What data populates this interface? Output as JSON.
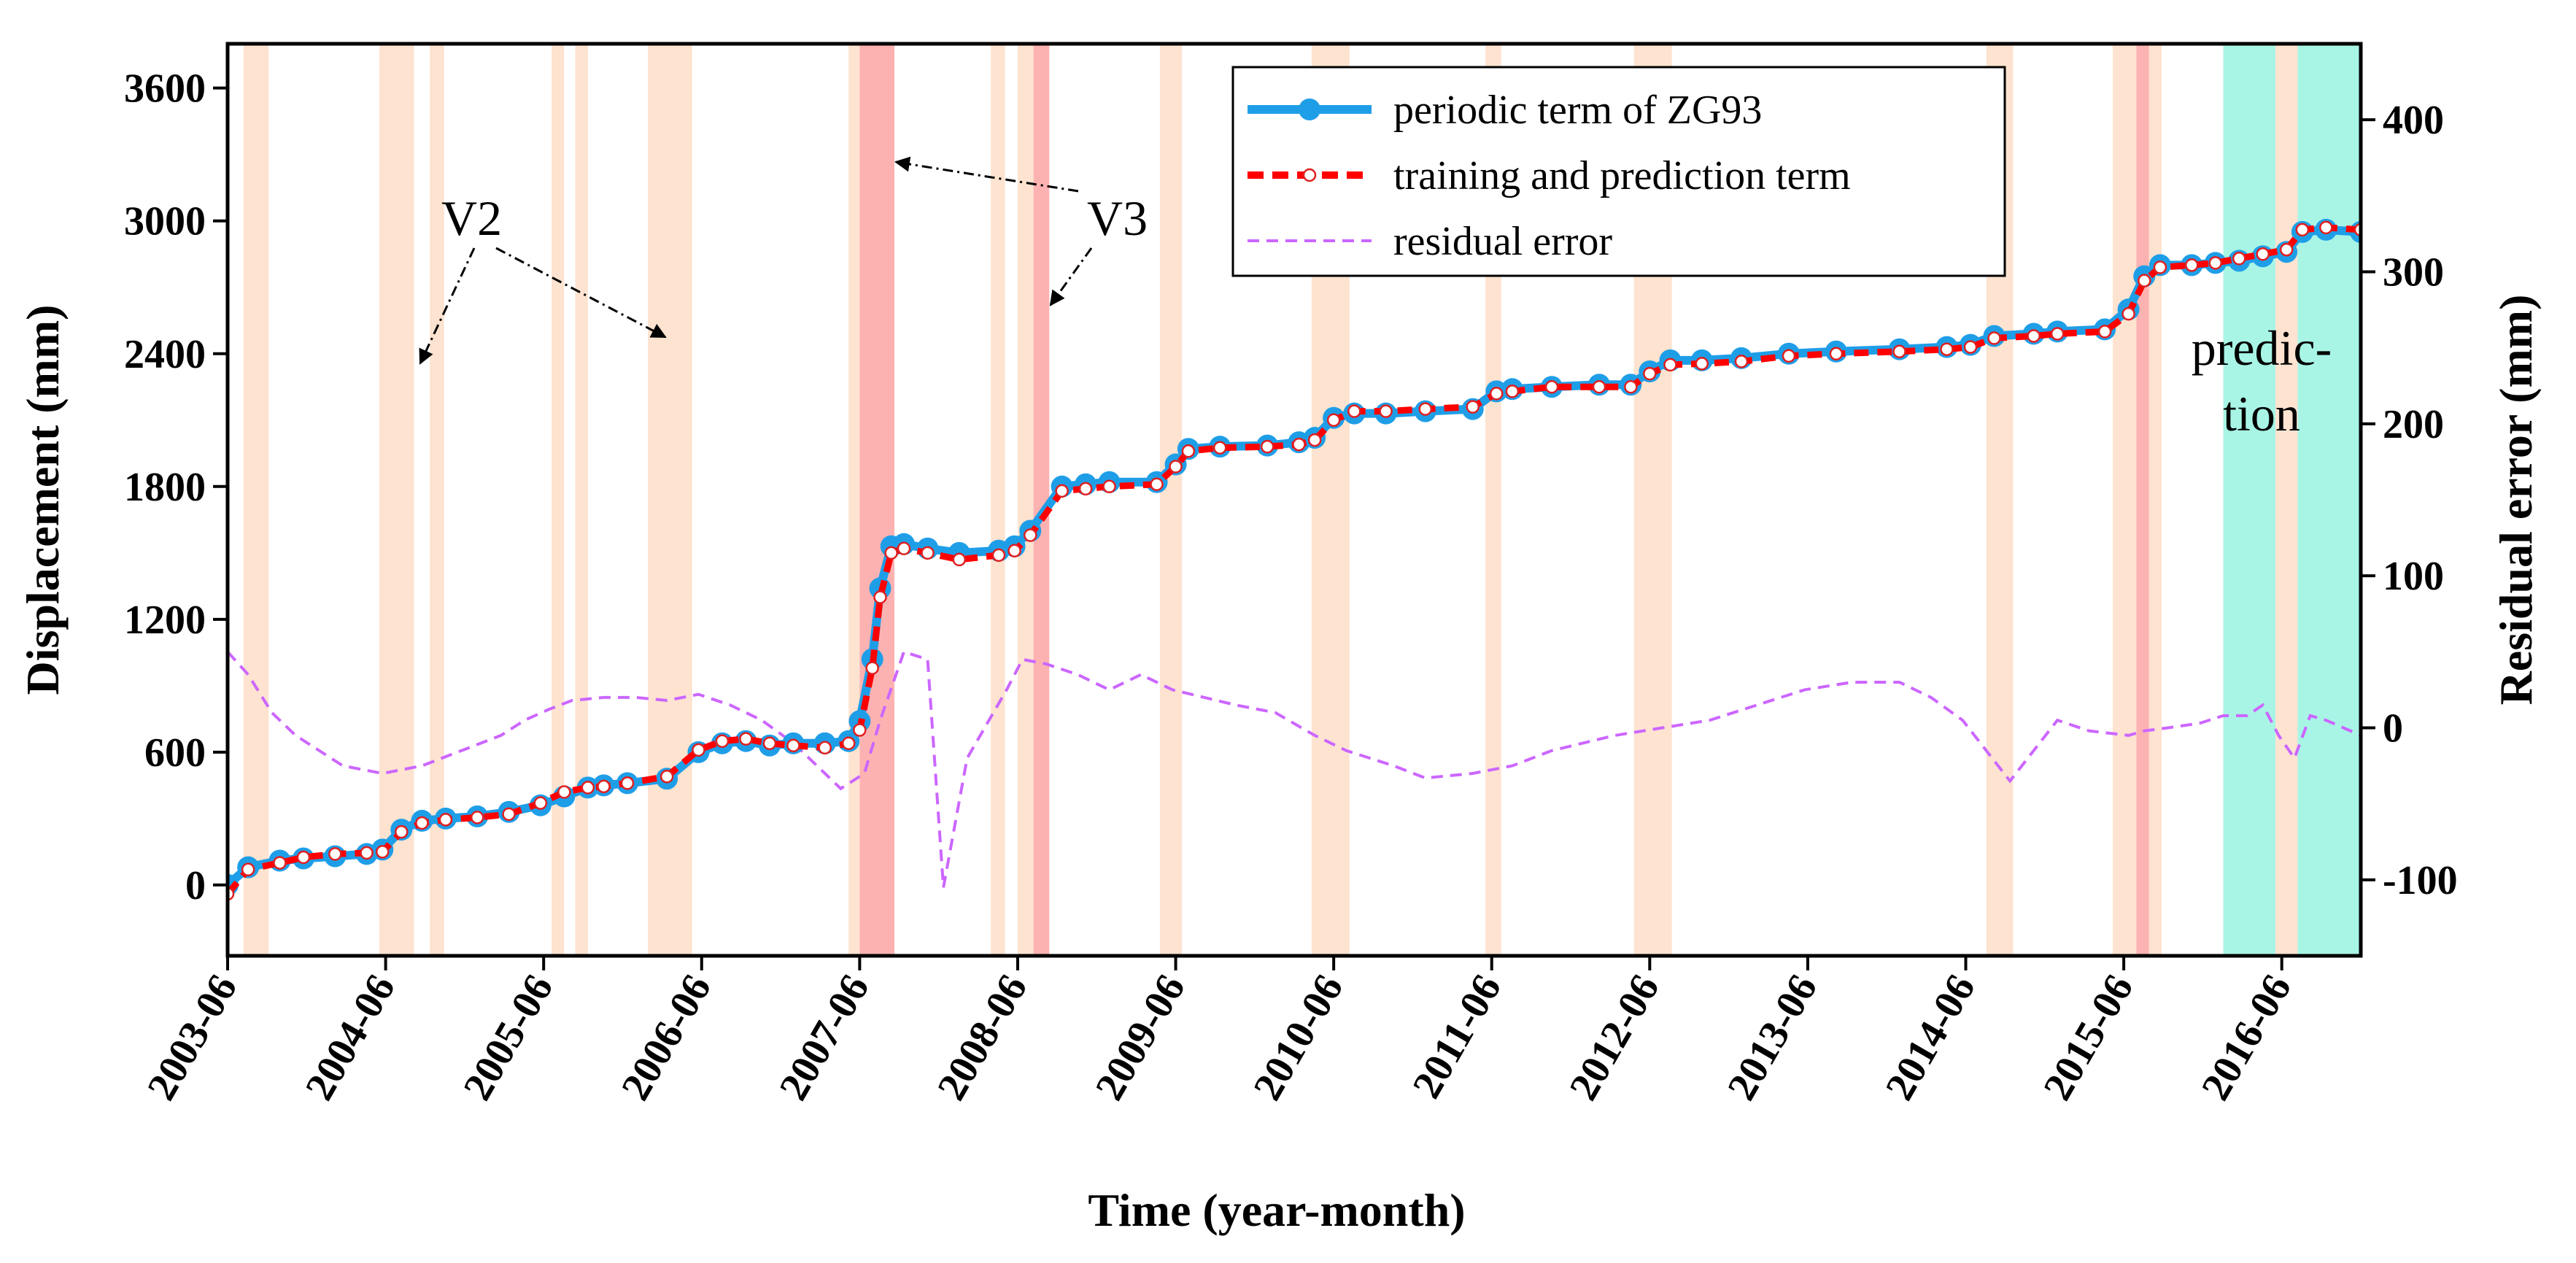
{
  "chart_data": {
    "type": "line",
    "title": "",
    "xlabel": "Time (year-month)",
    "ylabel": "Displacement (mm)",
    "y2label": "Residual error (mm)",
    "xlim": [
      2003.42,
      2016.92
    ],
    "ylim": [
      -320,
      3800
    ],
    "y2lim": [
      -150,
      450
    ],
    "x_ticks": [
      {
        "label": "2003-06",
        "value": 2003.42
      },
      {
        "label": "2004-06",
        "value": 2004.42
      },
      {
        "label": "2005-06",
        "value": 2005.42
      },
      {
        "label": "2006-06",
        "value": 2006.42
      },
      {
        "label": "2007-06",
        "value": 2007.42
      },
      {
        "label": "2008-06",
        "value": 2008.42
      },
      {
        "label": "2009-06",
        "value": 2009.42
      },
      {
        "label": "2010-06",
        "value": 2010.42
      },
      {
        "label": "2011-06",
        "value": 2011.42
      },
      {
        "label": "2012-06",
        "value": 2012.42
      },
      {
        "label": "2013-06",
        "value": 2013.42
      },
      {
        "label": "2014-06",
        "value": 2014.42
      },
      {
        "label": "2015-06",
        "value": 2015.42
      },
      {
        "label": "2016-06",
        "value": 2016.42
      }
    ],
    "y_ticks": [
      0,
      600,
      1200,
      1800,
      2400,
      3000,
      3600
    ],
    "y2_ticks": [
      -100,
      0,
      100,
      200,
      300,
      400
    ],
    "legend": {
      "position": "top-right",
      "entries": [
        "periodic term of ZG93",
        "training and prediction term",
        "residual error"
      ]
    },
    "colors": {
      "periodic": "#1f9ee8",
      "training": "#ff0000",
      "residual": "#cc66ff",
      "band_v2": "#fde3d0",
      "band_v3": "#fdb2b2",
      "prediction": "#a8f5e6"
    },
    "series": [
      {
        "name": "periodic term of ZG93",
        "axis": "left",
        "x": [
          2003.42,
          2003.55,
          2003.75,
          2003.9,
          2004.1,
          2004.3,
          2004.4,
          2004.52,
          2004.65,
          2004.8,
          2005.0,
          2005.2,
          2005.4,
          2005.55,
          2005.7,
          2005.8,
          2005.95,
          2006.2,
          2006.4,
          2006.55,
          2006.7,
          2006.85,
          2007.0,
          2007.2,
          2007.35,
          2007.42,
          2007.5,
          2007.55,
          2007.62,
          2007.7,
          2007.85,
          2008.05,
          2008.3,
          2008.4,
          2008.5,
          2008.7,
          2008.85,
          2009.0,
          2009.3,
          2009.42,
          2009.5,
          2009.7,
          2010.0,
          2010.2,
          2010.3,
          2010.42,
          2010.55,
          2010.75,
          2011.0,
          2011.3,
          2011.45,
          2011.55,
          2011.8,
          2012.1,
          2012.3,
          2012.42,
          2012.55,
          2012.75,
          2013.0,
          2013.3,
          2013.6,
          2014.0,
          2014.3,
          2014.45,
          2014.6,
          2014.85,
          2015.0,
          2015.3,
          2015.45,
          2015.55,
          2015.65,
          2015.85,
          2016.0,
          2016.15,
          2016.3,
          2016.45,
          2016.55,
          2016.7,
          2016.92
        ],
        "y": [
          0,
          80,
          110,
          120,
          130,
          140,
          160,
          250,
          290,
          300,
          310,
          330,
          360,
          400,
          440,
          450,
          460,
          480,
          600,
          640,
          650,
          630,
          640,
          640,
          650,
          740,
          1020,
          1340,
          1530,
          1540,
          1520,
          1500,
          1510,
          1530,
          1600,
          1800,
          1810,
          1820,
          1820,
          1900,
          1970,
          1980,
          1985,
          2000,
          2020,
          2110,
          2130,
          2130,
          2140,
          2150,
          2230,
          2240,
          2250,
          2260,
          2260,
          2320,
          2370,
          2370,
          2380,
          2400,
          2410,
          2420,
          2430,
          2440,
          2480,
          2490,
          2500,
          2510,
          2600,
          2750,
          2800,
          2800,
          2810,
          2820,
          2840,
          2860,
          2950,
          2960,
          2950
        ],
        "marker_step": 1
      },
      {
        "name": "training and prediction term",
        "axis": "left",
        "x": [
          2003.42,
          2003.55,
          2003.75,
          2003.9,
          2004.1,
          2004.3,
          2004.4,
          2004.52,
          2004.65,
          2004.8,
          2005.0,
          2005.2,
          2005.4,
          2005.55,
          2005.7,
          2005.8,
          2005.95,
          2006.2,
          2006.4,
          2006.55,
          2006.7,
          2006.85,
          2007.0,
          2007.2,
          2007.35,
          2007.42,
          2007.5,
          2007.55,
          2007.62,
          2007.7,
          2007.85,
          2008.05,
          2008.3,
          2008.4,
          2008.5,
          2008.7,
          2008.85,
          2009.0,
          2009.3,
          2009.42,
          2009.5,
          2009.7,
          2010.0,
          2010.2,
          2010.3,
          2010.42,
          2010.55,
          2010.75,
          2011.0,
          2011.3,
          2011.45,
          2011.55,
          2011.8,
          2012.1,
          2012.3,
          2012.42,
          2012.55,
          2012.75,
          2013.0,
          2013.3,
          2013.6,
          2014.0,
          2014.3,
          2014.45,
          2014.6,
          2014.85,
          2015.0,
          2015.3,
          2015.45,
          2015.55,
          2015.65,
          2015.85,
          2016.0,
          2016.15,
          2016.3,
          2016.45,
          2016.55,
          2016.7,
          2016.92
        ],
        "y": [
          -40,
          70,
          100,
          125,
          140,
          145,
          150,
          240,
          280,
          295,
          305,
          320,
          370,
          420,
          440,
          445,
          460,
          490,
          610,
          650,
          660,
          640,
          630,
          620,
          640,
          700,
          980,
          1300,
          1500,
          1520,
          1500,
          1470,
          1490,
          1510,
          1580,
          1780,
          1790,
          1800,
          1810,
          1890,
          1960,
          1975,
          1980,
          1990,
          2010,
          2100,
          2140,
          2140,
          2150,
          2160,
          2220,
          2230,
          2250,
          2250,
          2250,
          2310,
          2350,
          2355,
          2365,
          2390,
          2400,
          2410,
          2420,
          2430,
          2470,
          2480,
          2490,
          2500,
          2580,
          2730,
          2790,
          2800,
          2810,
          2830,
          2850,
          2870,
          2960,
          2970,
          2960
        ]
      },
      {
        "name": "residual error",
        "axis": "right",
        "x": [
          2003.42,
          2003.55,
          2003.7,
          2003.85,
          2004.0,
          2004.15,
          2004.4,
          2004.65,
          2004.9,
          2005.15,
          2005.3,
          2005.45,
          2005.6,
          2005.8,
          2006.0,
          2006.2,
          2006.4,
          2006.6,
          2006.8,
          2007.0,
          2007.2,
          2007.3,
          2007.45,
          2007.55,
          2007.7,
          2007.85,
          2007.95,
          2008.1,
          2008.35,
          2008.45,
          2008.6,
          2008.8,
          2009.0,
          2009.2,
          2009.4,
          2009.6,
          2009.8,
          2010.05,
          2010.3,
          2010.5,
          2010.8,
          2011.0,
          2011.3,
          2011.55,
          2011.8,
          2012.0,
          2012.2,
          2012.5,
          2012.8,
          2013.1,
          2013.4,
          2013.7,
          2014.0,
          2014.2,
          2014.4,
          2014.55,
          2014.7,
          2015.0,
          2015.2,
          2015.45,
          2015.55,
          2015.7,
          2015.9,
          2016.05,
          2016.2,
          2016.3,
          2016.4,
          2016.5,
          2016.6,
          2016.7,
          2016.92
        ],
        "y": [
          50,
          35,
          10,
          -5,
          -15,
          -25,
          -30,
          -25,
          -15,
          -5,
          5,
          12,
          18,
          20,
          20,
          18,
          22,
          15,
          5,
          -10,
          -30,
          -40,
          -30,
          5,
          50,
          45,
          -105,
          -20,
          25,
          45,
          42,
          35,
          25,
          35,
          25,
          20,
          15,
          10,
          -5,
          -15,
          -25,
          -33,
          -30,
          -25,
          -15,
          -10,
          -5,
          0,
          5,
          15,
          25,
          30,
          30,
          20,
          5,
          -15,
          -35,
          5,
          -2,
          -5,
          -2,
          0,
          3,
          8,
          8,
          15,
          -5,
          -20,
          8,
          5,
          -5
        ]
      }
    ],
    "regions": [
      {
        "label": "V2",
        "kind": "v2",
        "from": 2003.52,
        "to": 2003.68
      },
      {
        "label": "V2",
        "kind": "v2",
        "from": 2004.38,
        "to": 2004.6
      },
      {
        "label": "V2",
        "kind": "v2",
        "from": 2004.7,
        "to": 2004.79
      },
      {
        "label": "V2",
        "kind": "v2",
        "from": 2005.47,
        "to": 2005.55
      },
      {
        "label": "V2",
        "kind": "v2",
        "from": 2005.62,
        "to": 2005.7
      },
      {
        "label": "V2",
        "kind": "v2",
        "from": 2006.08,
        "to": 2006.36
      },
      {
        "label": "V2",
        "kind": "v2",
        "from": 2007.35,
        "to": 2007.42
      },
      {
        "label": "V3",
        "kind": "v3",
        "from": 2007.42,
        "to": 2007.64
      },
      {
        "label": "V2",
        "kind": "v2",
        "from": 2008.25,
        "to": 2008.34
      },
      {
        "label": "V2",
        "kind": "v2",
        "from": 2008.42,
        "to": 2008.52
      },
      {
        "label": "V3",
        "kind": "v3",
        "from": 2008.52,
        "to": 2008.62
      },
      {
        "label": "V2",
        "kind": "v2",
        "from": 2009.32,
        "to": 2009.46
      },
      {
        "label": "V2",
        "kind": "v2",
        "from": 2010.28,
        "to": 2010.52
      },
      {
        "label": "V2",
        "kind": "v2",
        "from": 2011.38,
        "to": 2011.48
      },
      {
        "label": "V2",
        "kind": "v2",
        "from": 2012.32,
        "to": 2012.56
      },
      {
        "label": "V2",
        "kind": "v2",
        "from": 2014.55,
        "to": 2014.72
      },
      {
        "label": "V2",
        "kind": "v2",
        "from": 2015.35,
        "to": 2015.5
      },
      {
        "label": "V3",
        "kind": "v3",
        "from": 2015.5,
        "to": 2015.58
      },
      {
        "label": "V2",
        "kind": "v2",
        "from": 2015.58,
        "to": 2015.66
      },
      {
        "label": "prediction",
        "kind": "prediction",
        "from": 2016.05,
        "to": 2016.38
      },
      {
        "label": "prediction",
        "kind": "prediction",
        "from": 2016.52,
        "to": 2016.92
      },
      {
        "label": "",
        "kind": "v2",
        "from": 2016.38,
        "to": 2016.52
      }
    ],
    "annotations": [
      {
        "id": "v2",
        "text": "V2"
      },
      {
        "id": "v3",
        "text": "V3"
      },
      {
        "id": "prediction_line1",
        "text": "predic-"
      },
      {
        "id": "prediction_line2",
        "text": "tion"
      }
    ]
  }
}
